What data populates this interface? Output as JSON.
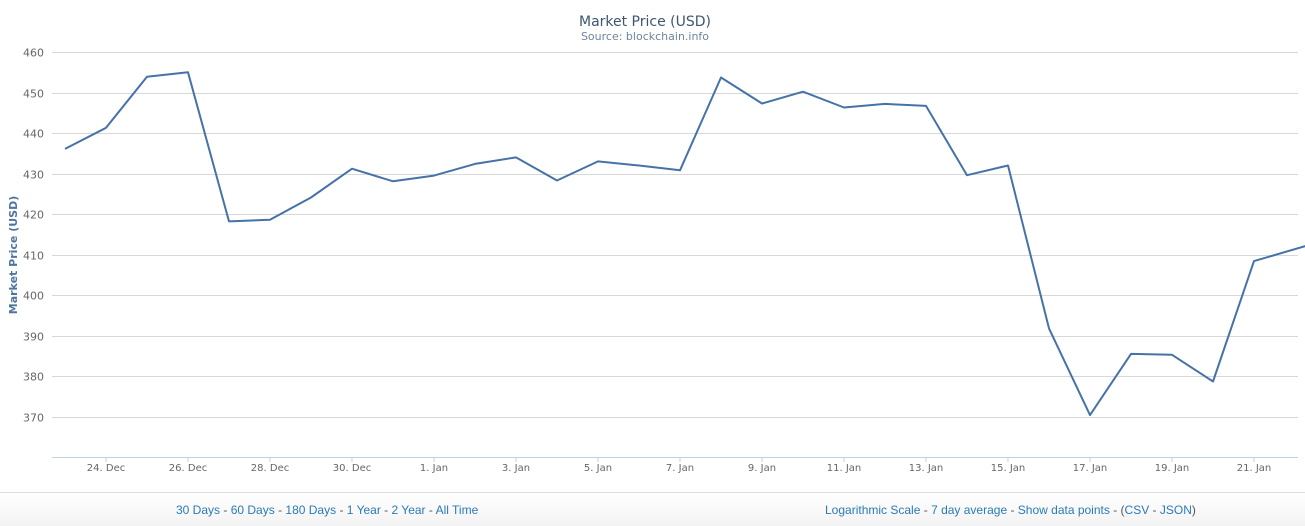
{
  "chart_data": {
    "type": "line",
    "title": "Market Price (USD)",
    "subtitle": "Source: blockchain.info",
    "xlabel": "",
    "ylabel": "Market Price (USD)",
    "ylim": [
      360,
      460
    ],
    "yticks": [
      370,
      380,
      390,
      400,
      410,
      420,
      430,
      440,
      450,
      460
    ],
    "grid": true,
    "legend": "none",
    "line_color": "#4572A7",
    "xtick_labels": [
      "24. Dec",
      "26. Dec",
      "28. Dec",
      "30. Dec",
      "1. Jan",
      "3. Jan",
      "5. Jan",
      "7. Jan",
      "9. Jan",
      "11. Jan",
      "13. Jan",
      "15. Jan",
      "17. Jan",
      "19. Jan",
      "21. Jan"
    ],
    "x": [
      "23 Dec",
      "24 Dec",
      "25 Dec",
      "26 Dec",
      "27 Dec",
      "28 Dec",
      "29 Dec",
      "30 Dec",
      "31 Dec",
      "1 Jan",
      "2 Jan",
      "3 Jan",
      "4 Jan",
      "5 Jan",
      "6 Jan",
      "7 Jan",
      "8 Jan",
      "9 Jan",
      "10 Jan",
      "11 Jan",
      "12 Jan",
      "13 Jan",
      "14 Jan",
      "15 Jan",
      "16 Jan",
      "17 Jan",
      "18 Jan",
      "19 Jan",
      "20 Jan",
      "21 Jan",
      "22 Jan"
    ],
    "x_offsets": [
      0,
      1,
      2,
      3,
      4,
      5,
      6,
      7,
      8,
      9,
      10,
      11,
      12,
      13,
      14,
      15,
      16,
      17,
      18,
      19,
      20,
      21,
      22,
      23,
      24,
      25,
      26,
      27,
      28,
      29,
      30.78
    ],
    "series": [
      {
        "name": "Market Price (USD)",
        "values": [
          436.1,
          441.3,
          453.9,
          455.0,
          418.2,
          418.6,
          424.1,
          431.2,
          428.1,
          429.5,
          432.4,
          434.0,
          428.3,
          433.0,
          432.0,
          430.8,
          453.7,
          447.3,
          450.2,
          446.3,
          447.2,
          446.7,
          429.6,
          432.0,
          391.8,
          370.4,
          385.5,
          385.3,
          378.7,
          408.4,
          413.7
        ]
      }
    ]
  },
  "footer": {
    "range_links": [
      "30 Days",
      "60 Days",
      "180 Days",
      "1 Year",
      "2 Year",
      "All Time"
    ],
    "option_links": [
      "Logarithmic Scale",
      "7 day average",
      "Show data points"
    ],
    "export_links": [
      "CSV",
      "JSON"
    ],
    "separator": " - ",
    "export_open": "(",
    "export_close": ")"
  }
}
